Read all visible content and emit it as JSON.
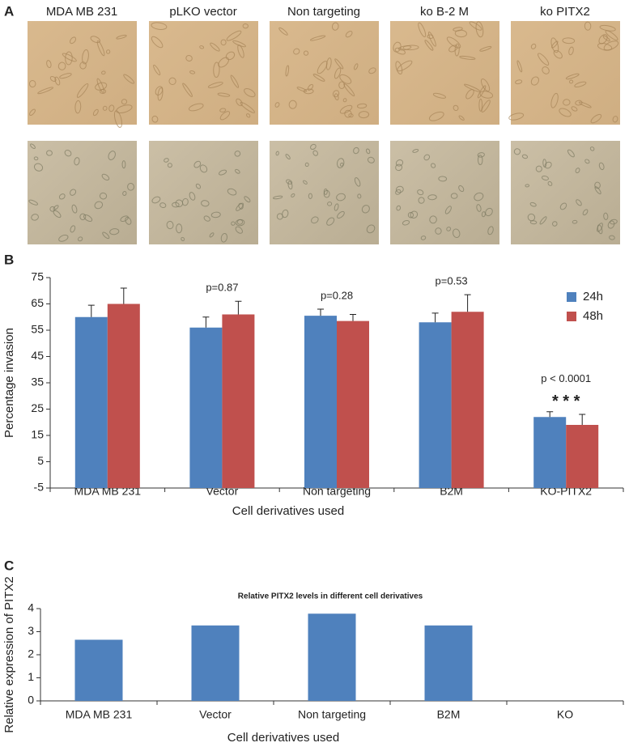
{
  "panel_a": {
    "label": "A",
    "columns": [
      "MDA MB 231",
      "pLKO vector",
      "Non targeting",
      "ko B-2 M",
      "ko PITX2"
    ]
  },
  "chart_data": [
    {
      "type": "bar",
      "panel_label": "B",
      "categories": [
        "MDA MB 231",
        "Vector",
        "Non targeting",
        "B2M",
        "KO-PITX2"
      ],
      "series": [
        {
          "name": "24h",
          "color": "#4f81bd",
          "values": [
            60,
            56,
            60.5,
            58,
            22
          ],
          "errors": [
            4.5,
            4,
            2.5,
            3.5,
            2
          ]
        },
        {
          "name": "48h",
          "color": "#c0504d",
          "values": [
            65,
            61,
            58.5,
            62,
            19
          ],
          "errors": [
            6,
            5,
            2.5,
            6.5,
            4
          ]
        }
      ],
      "annotations": [
        {
          "category": 1,
          "text": "p=0.87"
        },
        {
          "category": 2,
          "text": "p=0.28"
        },
        {
          "category": 3,
          "text": "p=0.53"
        },
        {
          "category": 4,
          "text": "p < 0.0001"
        },
        {
          "category": 4,
          "text": "* * *"
        }
      ],
      "y_label": "Percentage invasion",
      "x_label": "Cell derivatives used",
      "ylim": [
        -5,
        75
      ],
      "yticks": [
        -5,
        5,
        15,
        25,
        35,
        45,
        55,
        65,
        75
      ],
      "grid": false,
      "legend": "upper right"
    },
    {
      "type": "bar",
      "panel_label": "C",
      "title": "Relative PITX2 levels in different cell derivatives",
      "categories": [
        "MDA MB 231",
        "Vector",
        "Non targeting",
        "B2M",
        "KO"
      ],
      "values": [
        2.65,
        3.27,
        3.78,
        3.27,
        0
      ],
      "color": "#4f81bd",
      "y_label": "Relative expression of PITX2",
      "x_label": "Cell derivatives used",
      "ylim": [
        0,
        4
      ],
      "yticks": [
        0,
        1,
        2,
        3,
        4
      ],
      "grid": false
    }
  ]
}
